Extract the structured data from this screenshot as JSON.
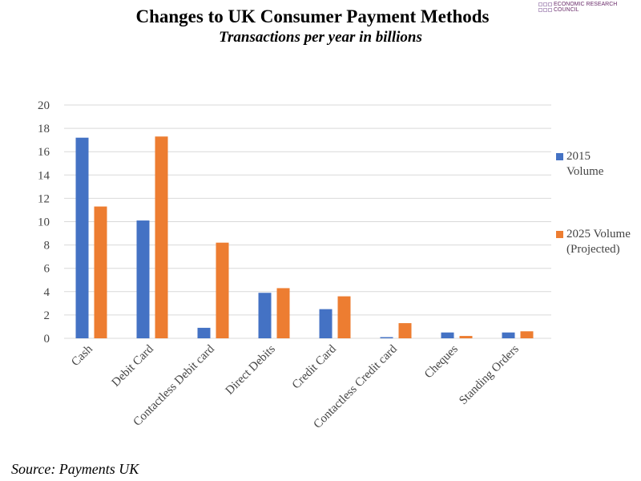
{
  "logo": "ECONOMIC RESEARCH COUNCIL",
  "chart_data": {
    "type": "bar",
    "title": "Changes to UK Consumer Payment Methods",
    "subtitle": "Transactions per year in billions",
    "source": "Source: Payments UK",
    "categories": [
      "Cash",
      "Debit Card",
      "Contactless Debit card",
      "Direct Debits",
      "Credit Card",
      "Contactless Credit card",
      "Cheques",
      "Standing Orders"
    ],
    "series": [
      {
        "name": "2015 Volume",
        "color": "#4472c4",
        "values": [
          17.2,
          10.1,
          0.9,
          3.9,
          2.5,
          0.1,
          0.5,
          0.5
        ]
      },
      {
        "name": "2025 Volume (Projected)",
        "color": "#ed7d31",
        "values": [
          11.3,
          17.3,
          8.2,
          4.3,
          3.6,
          1.3,
          0.2,
          0.6
        ]
      }
    ],
    "ylim": [
      0,
      20
    ],
    "yticks": [
      0,
      2,
      4,
      6,
      8,
      10,
      12,
      14,
      16,
      18,
      20
    ],
    "grid": true,
    "legend": "right"
  }
}
